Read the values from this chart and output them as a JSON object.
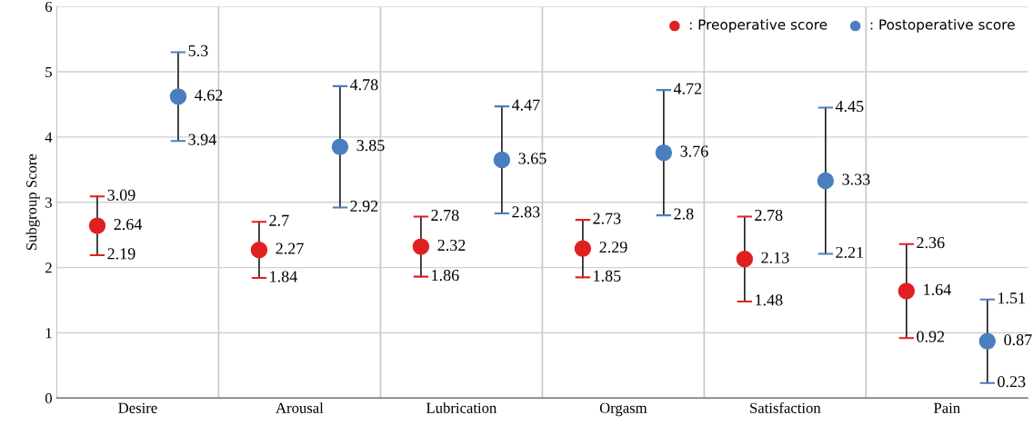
{
  "chart_data": {
    "type": "scatter",
    "ylabel": "Subgroup Score",
    "categories": [
      "Desire",
      "Arousal",
      "Lubrication",
      "Orgasm",
      "Satisfaction",
      "Pain"
    ],
    "series": [
      {
        "name": ": Preoperative score",
        "color": "#e02020",
        "values": [
          2.64,
          2.27,
          2.32,
          2.29,
          2.13,
          1.64
        ],
        "errors": [
          [
            2.19,
            3.09
          ],
          [
            1.84,
            2.7
          ],
          [
            1.86,
            2.78
          ],
          [
            1.85,
            2.73
          ],
          [
            1.48,
            2.78
          ],
          [
            0.92,
            2.36
          ]
        ]
      },
      {
        "name": ": Postoperative score",
        "color": "#4a7ebf",
        "values": [
          4.62,
          3.85,
          3.65,
          3.76,
          3.33,
          0.87
        ],
        "errors": [
          [
            3.94,
            5.3
          ],
          [
            2.92,
            4.78
          ],
          [
            2.83,
            4.47
          ],
          [
            2.8,
            4.72
          ],
          [
            2.21,
            4.45
          ],
          [
            0.23,
            1.51
          ]
        ]
      }
    ],
    "annotations": [
      "3.09",
      "2.19",
      "2.7",
      "1.84",
      "2.78",
      "1.86",
      "2.73",
      "1.85",
      "2.78",
      "1.48",
      "2.36",
      "0.92",
      "5.3",
      "3.94",
      "4.78",
      "2.92",
      "4.47",
      "2.83",
      "4.72",
      "2.8",
      "4.45",
      "2.21",
      "1.51",
      "0.23"
    ],
    "ylim": [
      0,
      6
    ],
    "yticks": [
      0,
      1,
      2,
      3,
      4,
      5,
      6
    ],
    "grid": true,
    "legend": "top right",
    "marker": "circle",
    "data_labels": true
  }
}
